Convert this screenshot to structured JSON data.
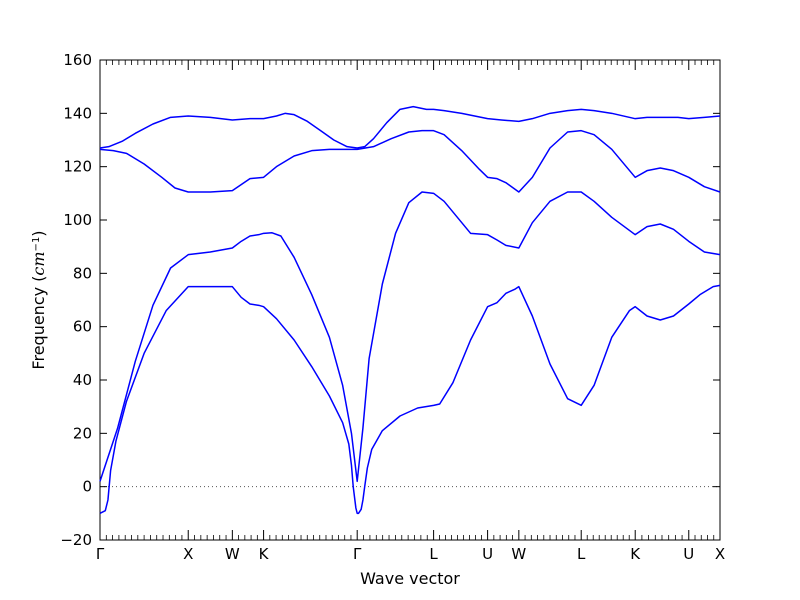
{
  "chart_data": {
    "type": "line",
    "xlabel": "Wave vector",
    "ylabel_text": "Frequency (",
    "ylabel_unit_base": "cm",
    "ylabel_unit_exp": "−1",
    "ylabel_close": ")",
    "ylim": [
      -20,
      160
    ],
    "yticks": [
      -20,
      0,
      20,
      40,
      60,
      80,
      100,
      120,
      140,
      160
    ],
    "ytick_labels": [
      "−20",
      "0",
      "20",
      "40",
      "60",
      "80",
      "100",
      "120",
      "140",
      "160"
    ],
    "x_points": [
      {
        "label": "Γ",
        "x": 0
      },
      {
        "label": "X",
        "x": 1.0
      },
      {
        "label": "W",
        "x": 1.5
      },
      {
        "label": "K",
        "x": 1.854
      },
      {
        "label": "Γ",
        "x": 2.915
      },
      {
        "label": "L",
        "x": 3.781
      },
      {
        "label": "U",
        "x": 4.393
      },
      {
        "label": "W",
        "x": 4.747
      },
      {
        "label": "L",
        "x": 5.454
      },
      {
        "label": "K",
        "x": 6.066
      },
      {
        "label": "U",
        "x": 6.673
      },
      {
        "label": "X",
        "x": 7.027
      }
    ],
    "xlim": [
      0,
      7.027
    ],
    "zero_line": {
      "y": 0,
      "style": "dotted",
      "color": "#555555"
    },
    "line_color": "#0000ff",
    "series": [
      {
        "x": [
          0,
          0.06,
          0.09,
          0.12,
          0.18,
          0.3,
          0.5,
          0.75,
          1.0,
          1.25,
          1.5,
          1.6,
          1.7,
          1.8,
          1.854,
          2.0,
          2.2,
          2.4,
          2.6,
          2.75,
          2.82,
          2.85,
          2.87,
          2.9,
          2.915,
          2.93,
          2.96,
          2.98,
          3.0,
          3.03,
          3.08,
          3.2,
          3.4,
          3.6,
          3.781,
          3.85,
          4.0,
          4.2,
          4.393,
          4.5,
          4.6,
          4.7,
          4.747,
          4.9,
          5.1,
          5.3,
          5.454,
          5.6,
          5.8,
          6.0,
          6.066,
          6.2,
          6.35,
          6.5,
          6.673,
          6.8,
          6.95,
          7.027
        ],
        "y": [
          -10,
          -9,
          -5,
          6,
          17,
          32,
          50,
          66,
          75,
          75,
          75,
          71,
          68.5,
          68,
          67.5,
          63,
          55,
          45,
          34,
          24,
          16,
          8,
          0,
          -8,
          -10,
          -10,
          -8.5,
          -5,
          0,
          7,
          14,
          21,
          26.5,
          29.5,
          30.5,
          31,
          39,
          55,
          67.5,
          69,
          72.5,
          74,
          75,
          64,
          46,
          33,
          30.5,
          38,
          56,
          66,
          67.5,
          64,
          62.5,
          64,
          68.5,
          72,
          75,
          75.5
        ]
      },
      {
        "x": [
          0,
          0.2,
          0.4,
          0.6,
          0.8,
          1.0,
          1.25,
          1.5,
          1.6,
          1.7,
          1.8,
          1.854,
          1.95,
          2.05,
          2.2,
          2.4,
          2.6,
          2.75,
          2.85,
          2.915,
          2.98,
          3.05,
          3.2,
          3.35,
          3.5,
          3.65,
          3.781,
          3.9,
          4.05,
          4.2,
          4.393,
          4.5,
          4.6,
          4.747,
          4.9,
          5.1,
          5.3,
          5.454,
          5.6,
          5.8,
          6.066,
          6.2,
          6.35,
          6.5,
          6.673,
          6.85,
          7.027
        ],
        "y": [
          2,
          22,
          47,
          68,
          82,
          87,
          88,
          89.5,
          92,
          94,
          94.5,
          95,
          95.2,
          94,
          86,
          72,
          56,
          38,
          20,
          2,
          22,
          48,
          76,
          95,
          106.5,
          110.5,
          110,
          107,
          101,
          95,
          94.5,
          92.5,
          90.5,
          89.5,
          99,
          107,
          110.5,
          110.5,
          107,
          101,
          94.5,
          97.5,
          98.5,
          96.5,
          92,
          88,
          87
        ]
      },
      {
        "x": [
          0,
          0.15,
          0.3,
          0.5,
          0.7,
          0.85,
          1.0,
          1.25,
          1.5,
          1.7,
          1.854,
          2.0,
          2.2,
          2.4,
          2.6,
          2.75,
          2.915,
          3.1,
          3.3,
          3.5,
          3.65,
          3.781,
          3.9,
          4.1,
          4.3,
          4.393,
          4.5,
          4.6,
          4.747,
          4.9,
          5.1,
          5.3,
          5.454,
          5.6,
          5.8,
          6.066,
          6.2,
          6.35,
          6.5,
          6.673,
          6.85,
          7.027
        ],
        "y": [
          126.5,
          126,
          125,
          121,
          116,
          112,
          110.5,
          110.5,
          111,
          115.5,
          116,
          120,
          124,
          126,
          126.5,
          126.5,
          126.5,
          127.5,
          130.5,
          133,
          133.5,
          133.5,
          132,
          126,
          119,
          116,
          115.5,
          114,
          110.5,
          116,
          127,
          133,
          133.5,
          132,
          126.5,
          116,
          118.5,
          119.5,
          118.5,
          116,
          112.5,
          110.5
        ]
      },
      {
        "x": [
          0,
          0.1,
          0.25,
          0.4,
          0.6,
          0.8,
          1.0,
          1.25,
          1.5,
          1.7,
          1.854,
          2.0,
          2.1,
          2.2,
          2.35,
          2.5,
          2.65,
          2.8,
          2.915,
          3.0,
          3.1,
          3.25,
          3.4,
          3.55,
          3.7,
          3.781,
          3.9,
          4.1,
          4.393,
          4.55,
          4.747,
          4.9,
          5.1,
          5.3,
          5.454,
          5.6,
          5.8,
          6.066,
          6.2,
          6.4,
          6.55,
          6.673,
          6.85,
          7.027
        ],
        "y": [
          127,
          127.5,
          129.5,
          132.5,
          136,
          138.5,
          139,
          138.5,
          137.5,
          138,
          138,
          139,
          140,
          139.5,
          137,
          133.5,
          130,
          127.5,
          127,
          127.5,
          130.5,
          136.5,
          141.5,
          142.5,
          141.5,
          141.5,
          141,
          140,
          138,
          137.5,
          137,
          138,
          140,
          141,
          141.5,
          141,
          140,
          138,
          138.5,
          138.5,
          138.5,
          138,
          138.5,
          139
        ]
      }
    ]
  }
}
